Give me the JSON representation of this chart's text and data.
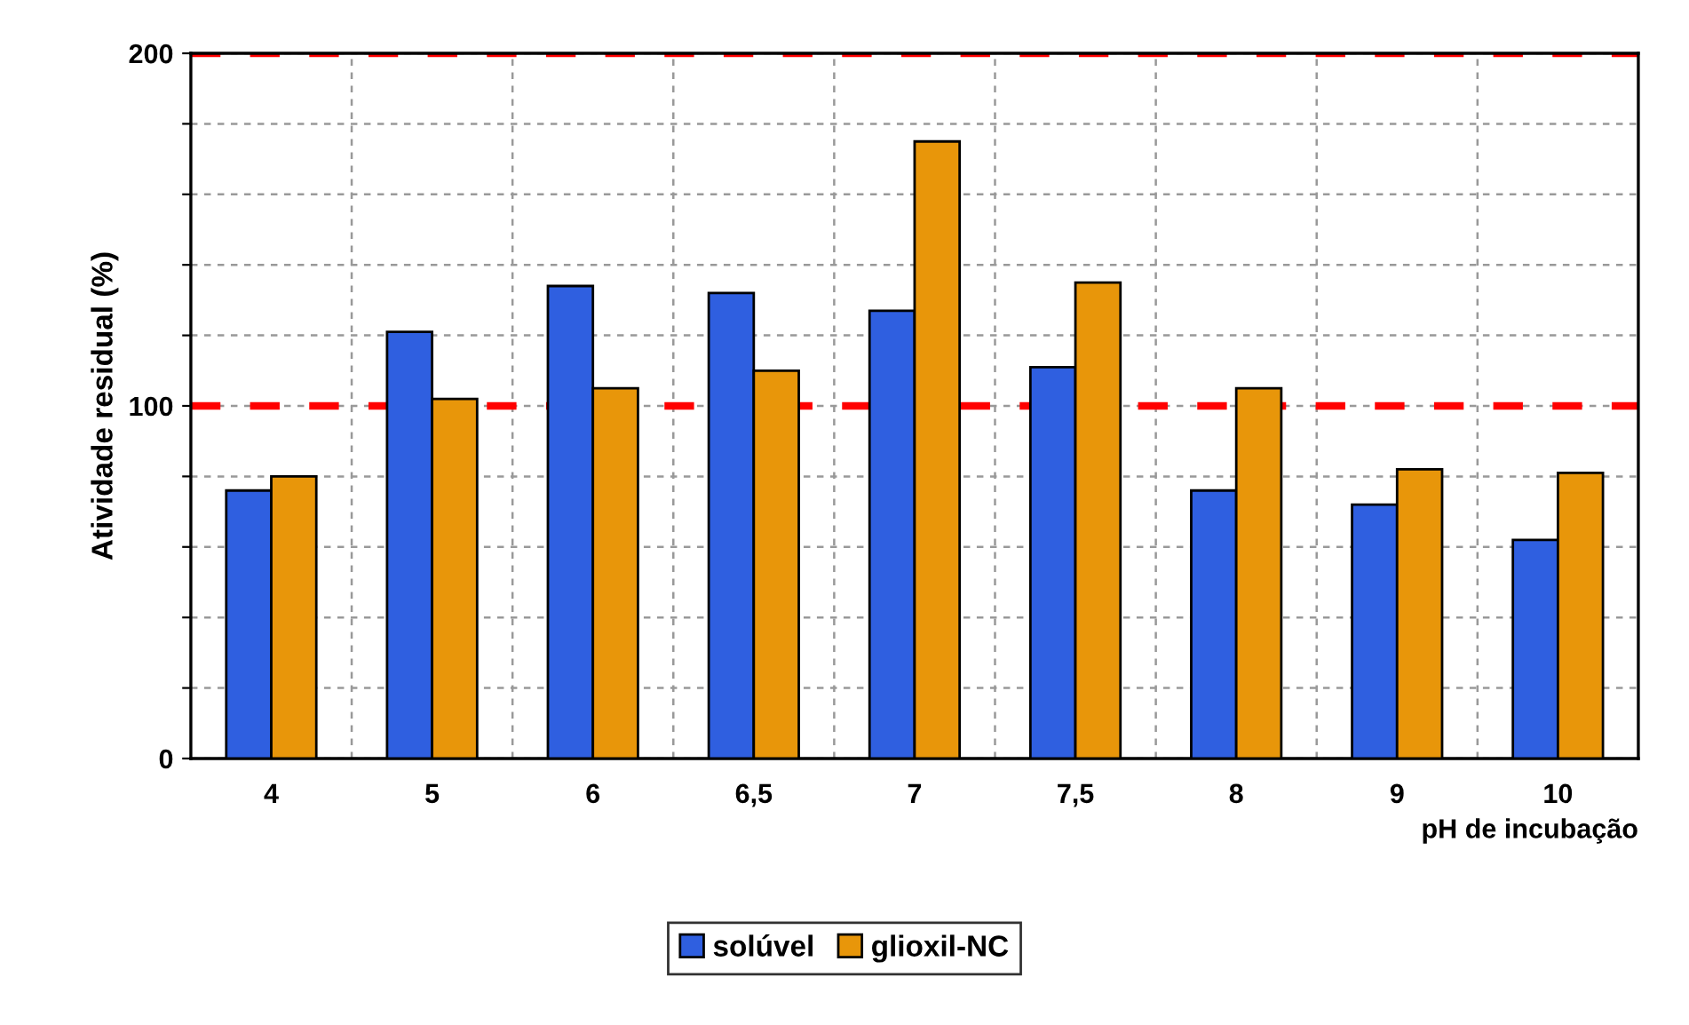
{
  "chart_data": {
    "type": "bar",
    "xlabel": "pH de incubação",
    "ylabel": "Atividade residual (%)",
    "categories": [
      "4",
      "5",
      "6",
      "6,5",
      "7",
      "7,5",
      "8",
      "9",
      "10"
    ],
    "series": [
      {
        "name": "solúvel",
        "color": "#2f5fe0",
        "values": [
          76,
          121,
          134,
          132,
          127,
          111,
          76,
          72,
          62
        ]
      },
      {
        "name": "glioxil-NC",
        "color": "#e8960a",
        "values": [
          80,
          102,
          105,
          110,
          175,
          135,
          105,
          82,
          81
        ]
      }
    ],
    "ylim": [
      0,
      200
    ],
    "yticks": [
      0,
      {
        "value": 20,
        "label": null
      },
      {
        "value": 40,
        "label": null
      },
      {
        "value": 60,
        "label": null
      },
      {
        "value": 80,
        "label": null
      },
      100,
      {
        "value": 120,
        "label": null
      },
      {
        "value": 140,
        "label": null
      },
      {
        "value": 160,
        "label": null
      },
      {
        "value": 180,
        "label": null
      },
      200
    ],
    "ref_lines": [
      {
        "axis": "y",
        "value": 100,
        "color": "#ff0000",
        "line_style": "dashed"
      },
      {
        "axis": "y",
        "value": 200,
        "color": "#ff0000",
        "line_style": "dashed"
      }
    ],
    "grid": true,
    "legend": "bottom"
  }
}
